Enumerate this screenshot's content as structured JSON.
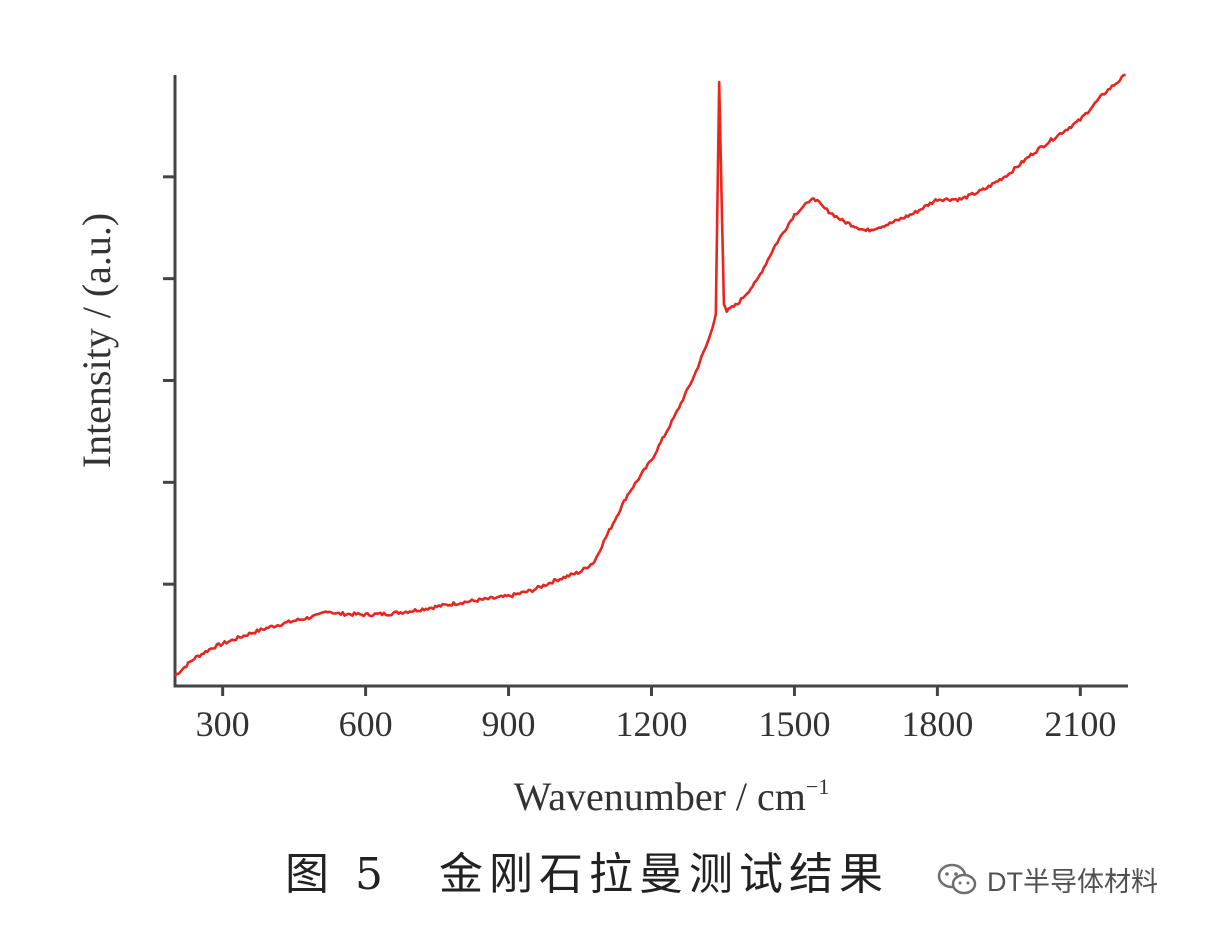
{
  "chart_data": {
    "type": "line",
    "title": "",
    "xlabel": "Wavenumber / cm",
    "xlabel_superscript": "−1",
    "ylabel": "Intensity / (a.u.)",
    "xlim": [
      200,
      2200
    ],
    "ylim": [
      0,
      6
    ],
    "x_ticks": [
      300,
      600,
      900,
      1200,
      1500,
      1800,
      2100
    ],
    "y_ticks": [
      1,
      2,
      3,
      4,
      5
    ],
    "y_tick_labels_shown": false,
    "grid": false,
    "legend": "none",
    "series": [
      {
        "color": "#e8251f",
        "points": [
          [
            200,
            0.1
          ],
          [
            240,
            0.27
          ],
          [
            280,
            0.38
          ],
          [
            320,
            0.45
          ],
          [
            360,
            0.52
          ],
          [
            400,
            0.58
          ],
          [
            450,
            0.64
          ],
          [
            500,
            0.69
          ],
          [
            520,
            0.74
          ],
          [
            540,
            0.71
          ],
          [
            600,
            0.7
          ],
          [
            650,
            0.71
          ],
          [
            700,
            0.74
          ],
          [
            750,
            0.78
          ],
          [
            800,
            0.82
          ],
          [
            850,
            0.85
          ],
          [
            900,
            0.88
          ],
          [
            950,
            0.94
          ],
          [
            1000,
            1.04
          ],
          [
            1050,
            1.12
          ],
          [
            1080,
            1.22
          ],
          [
            1100,
            1.42
          ],
          [
            1150,
            1.88
          ],
          [
            1200,
            2.22
          ],
          [
            1250,
            2.66
          ],
          [
            1290,
            3.05
          ],
          [
            1320,
            3.4
          ],
          [
            1335,
            3.65
          ],
          [
            1342,
            5.93
          ],
          [
            1348,
            4.6
          ],
          [
            1352,
            3.75
          ],
          [
            1358,
            3.68
          ],
          [
            1380,
            3.75
          ],
          [
            1420,
            3.97
          ],
          [
            1460,
            4.33
          ],
          [
            1500,
            4.63
          ],
          [
            1530,
            4.75
          ],
          [
            1540,
            4.8
          ],
          [
            1560,
            4.7
          ],
          [
            1600,
            4.57
          ],
          [
            1650,
            4.47
          ],
          [
            1700,
            4.54
          ],
          [
            1750,
            4.64
          ],
          [
            1800,
            4.78
          ],
          [
            1850,
            4.78
          ],
          [
            1900,
            4.88
          ],
          [
            1950,
            5.03
          ],
          [
            2000,
            5.23
          ],
          [
            2050,
            5.4
          ],
          [
            2100,
            5.56
          ],
          [
            2150,
            5.82
          ],
          [
            2195,
            6.0
          ]
        ]
      }
    ]
  },
  "caption": "图 5　金刚石拉曼测试结果",
  "watermark": "DT半导体材料"
}
